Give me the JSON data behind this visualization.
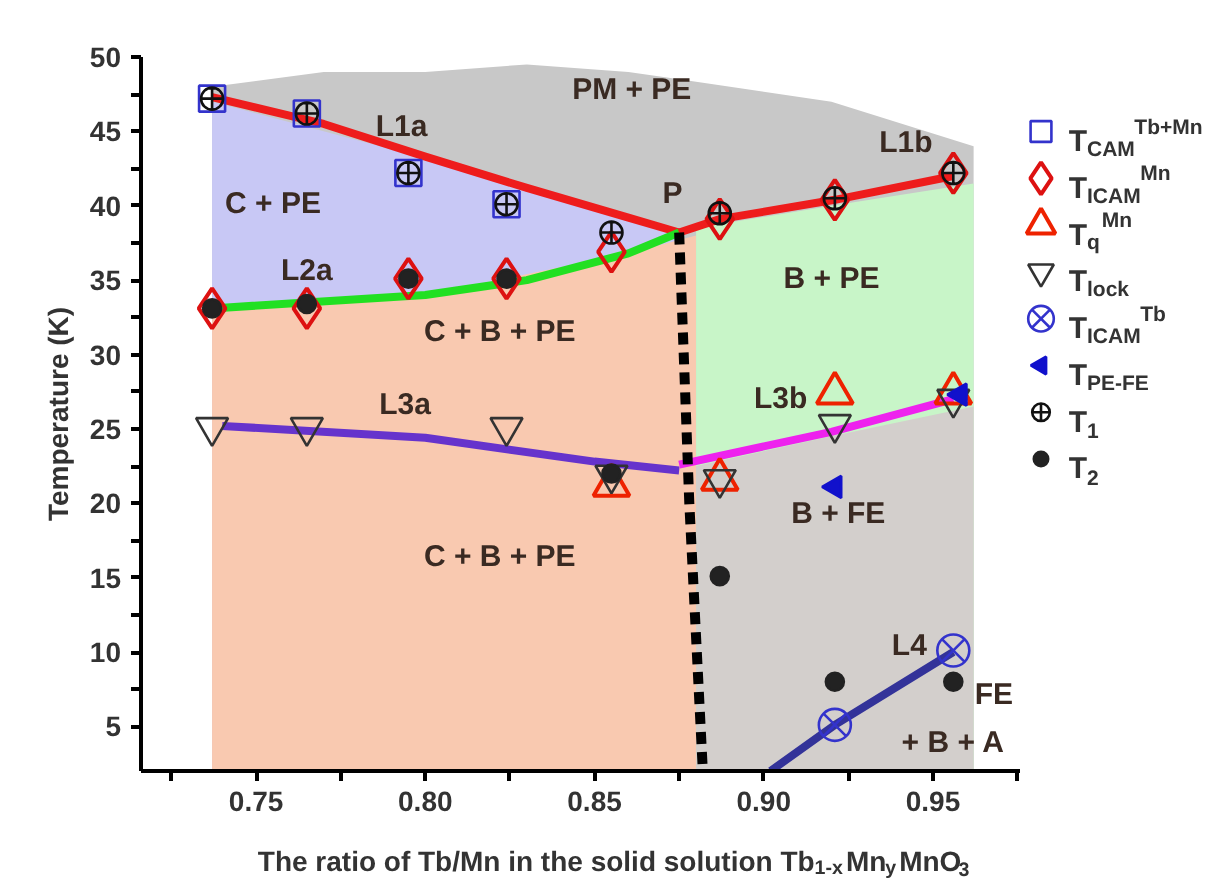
{
  "chart_data": {
    "type": "scatter",
    "xlabel": "The ratio of Tb/Mn in the solid solution Tb$_{1-x}$Mn$_{y}$MnO$_{3}$",
    "ylabel": "Temperature (K)",
    "xlim": [
      0.716,
      0.976
    ],
    "ylim": [
      2,
      50
    ],
    "xticks": [
      {
        "value": 0.725,
        "label": null
      },
      0.75,
      {
        "value": 0.775,
        "label": null
      },
      {
        "value": 0.8,
        "label": "0.80"
      },
      {
        "value": 0.825,
        "label": null
      },
      0.85,
      {
        "value": 0.875,
        "label": null
      },
      {
        "value": 0.9,
        "label": "0.90"
      },
      {
        "value": 0.925,
        "label": null
      },
      0.95,
      {
        "value": 0.975,
        "label": null
      }
    ],
    "yticks": [
      5,
      {
        "value": 7.5,
        "label": null
      },
      10,
      {
        "value": 12.5,
        "label": null
      },
      15,
      {
        "value": 17.5,
        "label": null
      },
      20,
      {
        "value": 22.5,
        "label": null
      },
      25,
      {
        "value": 27.5,
        "label": null
      },
      30,
      {
        "value": 32.5,
        "label": null
      },
      35,
      {
        "value": 37.5,
        "label": null
      },
      40,
      {
        "value": 42.5,
        "label": null
      },
      45,
      {
        "value": 47.5,
        "label": null
      },
      50
    ],
    "grid": false,
    "legend": "right",
    "series": [
      {
        "type": "area",
        "color": "#c8c8c8",
        "x": [
          0.737,
          0.77,
          0.8,
          0.83,
          0.86,
          0.875,
          0.92,
          0.962
        ],
        "values": [
          48,
          49,
          49,
          49.5,
          49,
          48.5,
          47,
          44
        ]
      },
      {
        "type": "area",
        "color": "#c8c8f5",
        "x": [
          0.737,
          0.8,
          0.86,
          0.875
        ],
        "values": [
          47,
          43.2,
          39.2,
          38.2
        ]
      },
      {
        "type": "area",
        "color": "#f9c9b0",
        "x": [
          0.737,
          0.8,
          0.86,
          0.88
        ],
        "values": [
          33,
          34,
          36.8,
          38
        ]
      },
      {
        "type": "area",
        "color": "#c8f5c8",
        "x": [
          0.88,
          0.92,
          0.962
        ],
        "values": [
          38.5,
          40,
          41.5
        ]
      },
      {
        "type": "area",
        "color": "#d3cfcc",
        "x": [
          0.88,
          0.92,
          0.962
        ],
        "values": [
          22.5,
          24.5,
          26.5
        ]
      },
      {
        "type": "line",
        "color": "#ee1c1c",
        "line_style": "solid",
        "x": [
          0.737,
          0.77,
          0.8,
          0.83,
          0.86,
          0.875
        ],
        "values": [
          47.3,
          45.5,
          43.3,
          41.2,
          39.2,
          38.2
        ]
      },
      {
        "type": "line",
        "color": "#ee1c1c",
        "line_style": "solid",
        "x": [
          0.875,
          0.887,
          0.921,
          0.956
        ],
        "values": [
          38.2,
          39.1,
          40.4,
          42
        ]
      },
      {
        "type": "line",
        "color": "#22e022",
        "line_style": "solid",
        "x": [
          0.737,
          0.8,
          0.83,
          0.86,
          0.875
        ],
        "values": [
          33.1,
          34,
          35,
          36.8,
          38.2
        ]
      },
      {
        "type": "line",
        "color": "#6633cc",
        "line_style": "solid",
        "x": [
          0.74,
          0.8,
          0.85,
          0.875
        ],
        "values": [
          25.2,
          24.4,
          22.8,
          22.2
        ]
      },
      {
        "type": "line",
        "color": "#ee22ee",
        "line_style": "solid",
        "x": [
          0.875,
          0.92,
          0.956
        ],
        "values": [
          22.6,
          24.8,
          27
        ]
      },
      {
        "type": "line",
        "color": "#333399",
        "line_style": "solid",
        "x": [
          0.902,
          0.921,
          0.956
        ],
        "values": [
          2,
          5.1,
          10
        ]
      },
      {
        "type": "line",
        "color": "#000000",
        "line_style": "dashed",
        "x": [
          0.875,
          0.878,
          0.882
        ],
        "values": [
          38.2,
          20,
          2
        ]
      },
      {
        "name": "T$_{CAM}$$^{Tb+Mn}$",
        "marker": "square",
        "color": "#3333cc",
        "x": [
          0.737,
          0.765,
          0.795,
          0.824
        ],
        "values": [
          47.2,
          46.2,
          42.2,
          40.1
        ]
      },
      {
        "name": "T$_{ICAM}$$^{Mn}$",
        "marker": "diamond",
        "color": "#dd1111",
        "x": [
          0.737,
          0.765,
          0.795,
          0.824,
          0.855,
          0.887,
          0.921,
          0.956
        ],
        "values": [
          33.1,
          33.1,
          35.1,
          35.1,
          36.9,
          39.1,
          40.4,
          42.2
        ]
      },
      {
        "name": "T$_{q}$$^{Mn}$",
        "marker": "triangle",
        "color": "#ee2200",
        "x": [
          0.855,
          0.887,
          0.921,
          0.956
        ],
        "values": [
          21.2,
          21.6,
          27.4,
          27.4
        ]
      },
      {
        "name": "T$_{lock}$",
        "color": "#333333",
        "x": [
          0.737,
          0.765,
          0.824,
          0.855,
          0.887,
          0.921,
          0.956
        ],
        "values": [
          25.1,
          25.1,
          25.1,
          21.9,
          21.6,
          25.3,
          27
        ]
      },
      {
        "name": "T$_{ICAM}$$^{Tb}$",
        "color": "#3333cc",
        "x": [
          0.921,
          0.956
        ],
        "values": [
          5.1,
          10.1
        ]
      },
      {
        "name": "T$_{PE-FE}$",
        "marker": "triangle_left",
        "color": "#1111cc",
        "x": [
          0.921,
          0.958
        ],
        "values": [
          21.1,
          27.3
        ]
      },
      {
        "name": "T$_{1}$",
        "marker": "circle_cross",
        "color": "#111111",
        "x": [
          0.737,
          0.765,
          0.795,
          0.824,
          0.855,
          0.887,
          0.921,
          0.956
        ],
        "values": [
          47.2,
          46.2,
          42.2,
          40.1,
          38.2,
          39.5,
          40.5,
          42.2
        ]
      },
      {
        "name": "T$_{2}$",
        "marker": "circle",
        "color": "#222222",
        "x": [
          0.737,
          0.765,
          0.795,
          0.824,
          0.855,
          0.887,
          0.921,
          0.956
        ],
        "values": [
          33.1,
          33.4,
          35.1,
          35.1,
          22,
          15.1,
          8,
          8
        ]
      }
    ],
    "annotations": [
      "PM + PE",
      "L1a",
      "C + PE",
      "L2a",
      "P",
      "L1b",
      "B + PE",
      "C + B + PE",
      "L3a",
      "C + B + PE",
      "L3b",
      "B + FE",
      "L4",
      "FE",
      "+ B + A"
    ]
  }
}
